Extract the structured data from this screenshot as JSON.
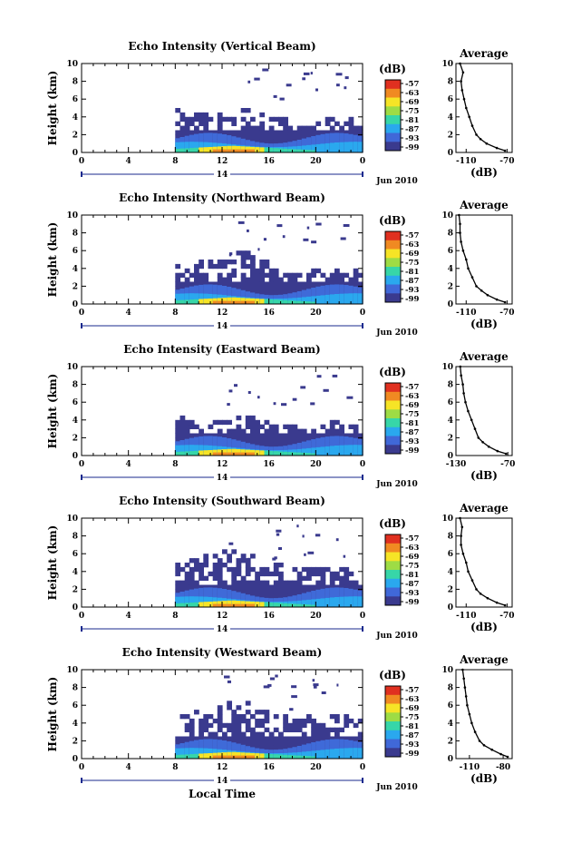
{
  "figure": {
    "xlabel": "Local Time",
    "date_label": "Jun 2010",
    "colorbar_unit": "(dB)",
    "colorbar_ticks": [
      "-57",
      "-63",
      "-69",
      "-75",
      "-81",
      "-87",
      "-93",
      "-99"
    ],
    "colorbar_colors": [
      "#e03020",
      "#f08a22",
      "#f6e426",
      "#9edc45",
      "#37d6a8",
      "#2aa8ee",
      "#4068d8",
      "#3a3a8e"
    ],
    "avg_title": "Average",
    "avg_xlabel": "(dB)"
  },
  "chart_data": [
    {
      "type": "heatmap",
      "title": "Echo Intensity (Vertical Beam)",
      "ylabel": "Height (km)",
      "x_ticks": [
        "0",
        "4",
        "8",
        "12",
        "16",
        "20",
        "0"
      ],
      "x_range": [
        0,
        24
      ],
      "day_label": "14",
      "y_ticks": [
        "0",
        "2",
        "4",
        "6",
        "8",
        "10"
      ],
      "ylim": [
        0,
        10
      ],
      "data_start_hour": 8,
      "echo_top_km": [
        4.6,
        4.4,
        4.3,
        4.2,
        4.4,
        5.1,
        4.6,
        4.3,
        4.0,
        3.8,
        3.6,
        3.4,
        3.4,
        3.5,
        3.7,
        3.6,
        3.5
      ],
      "average": {
        "title": "Average",
        "xlabel": "(dB)",
        "x_ticks": [
          "-110",
          "-70"
        ],
        "xlim": [
          -120,
          -65
        ],
        "profile": [
          [
            0.2,
            -72
          ],
          [
            0.5,
            -80
          ],
          [
            1,
            -90
          ],
          [
            1.5,
            -96
          ],
          [
            2,
            -100
          ],
          [
            3,
            -104
          ],
          [
            4,
            -107
          ],
          [
            5,
            -110
          ],
          [
            6,
            -112
          ],
          [
            7,
            -114
          ],
          [
            8,
            -115
          ],
          [
            9,
            -113
          ],
          [
            10,
            -116
          ]
        ]
      }
    },
    {
      "type": "heatmap",
      "title": "Echo Intensity (Northward Beam)",
      "ylabel": "Height (km)",
      "x_ticks": [
        "0",
        "4",
        "8",
        "12",
        "16",
        "20",
        "0"
      ],
      "x_range": [
        0,
        24
      ],
      "day_label": "14",
      "y_ticks": [
        "0",
        "2",
        "4",
        "6",
        "8",
        "10"
      ],
      "ylim": [
        0,
        10
      ],
      "data_start_hour": 8,
      "echo_top_km": [
        4.2,
        4.3,
        4.5,
        4.6,
        5.2,
        5.9,
        6.0,
        5.4,
        4.6,
        4.0,
        3.7,
        3.6,
        3.6,
        3.5,
        3.7,
        3.6,
        3.6
      ],
      "average": {
        "title": "Average",
        "xlabel": "(dB)",
        "x_ticks": [
          "-110",
          "-70"
        ],
        "xlim": [
          -120,
          -65
        ],
        "profile": [
          [
            0.2,
            -72
          ],
          [
            0.5,
            -80
          ],
          [
            1,
            -89
          ],
          [
            1.5,
            -95
          ],
          [
            2,
            -100
          ],
          [
            3,
            -104
          ],
          [
            4,
            -108
          ],
          [
            5,
            -110
          ],
          [
            6,
            -113
          ],
          [
            7,
            -115
          ],
          [
            8,
            -116
          ],
          [
            9,
            -116
          ],
          [
            10,
            -117
          ]
        ]
      }
    },
    {
      "type": "heatmap",
      "title": "Echo Intensity (Eastward Beam)",
      "ylabel": "Height (km)",
      "x_ticks": [
        "0",
        "4",
        "8",
        "12",
        "16",
        "20",
        "0"
      ],
      "x_range": [
        0,
        24
      ],
      "day_label": "14",
      "y_ticks": [
        "0",
        "2",
        "4",
        "6",
        "8",
        "10"
      ],
      "ylim": [
        0,
        10
      ],
      "data_start_hour": 8,
      "echo_top_km": [
        4.2,
        4.0,
        3.9,
        3.8,
        3.9,
        4.3,
        4.2,
        3.9,
        3.6,
        3.5,
        3.4,
        3.3,
        3.4,
        3.5,
        3.6,
        3.5,
        3.4
      ],
      "average": {
        "title": "Average",
        "xlabel": "(dB)",
        "x_ticks": [
          "-130",
          "-70"
        ],
        "xlim": [
          -130,
          -65
        ],
        "profile": [
          [
            0.2,
            -72
          ],
          [
            0.5,
            -82
          ],
          [
            1,
            -92
          ],
          [
            1.5,
            -99
          ],
          [
            2,
            -104
          ],
          [
            3,
            -108
          ],
          [
            4,
            -112
          ],
          [
            5,
            -116
          ],
          [
            6,
            -119
          ],
          [
            7,
            -121
          ],
          [
            8,
            -122
          ],
          [
            9,
            -124
          ],
          [
            10,
            -125
          ]
        ]
      }
    },
    {
      "type": "heatmap",
      "title": "Echo Intensity (Southward Beam)",
      "ylabel": "Height (km)",
      "x_ticks": [
        "0",
        "4",
        "8",
        "12",
        "16",
        "20",
        "0"
      ],
      "x_range": [
        0,
        24
      ],
      "day_label": "14",
      "y_ticks": [
        "0",
        "2",
        "4",
        "6",
        "8",
        "10"
      ],
      "ylim": [
        0,
        10
      ],
      "data_start_hour": 8,
      "echo_top_km": [
        4.8,
        5.0,
        5.3,
        5.8,
        6.0,
        6.2,
        5.8,
        5.3,
        4.9,
        4.6,
        4.4,
        4.3,
        4.2,
        4.1,
        4.3,
        4.2,
        4.0
      ],
      "average": {
        "title": "Average",
        "xlabel": "(dB)",
        "x_ticks": [
          "-110",
          "-70"
        ],
        "xlim": [
          -120,
          -65
        ],
        "profile": [
          [
            0.2,
            -72
          ],
          [
            0.5,
            -80
          ],
          [
            1,
            -89
          ],
          [
            1.5,
            -96
          ],
          [
            2,
            -100
          ],
          [
            3,
            -104
          ],
          [
            4,
            -108
          ],
          [
            5,
            -110
          ],
          [
            6,
            -113
          ],
          [
            7,
            -115
          ],
          [
            8,
            -115
          ],
          [
            9,
            -114
          ],
          [
            10,
            -116
          ]
        ]
      }
    },
    {
      "type": "heatmap",
      "title": "Echo Intensity (Westward Beam)",
      "ylabel": "Height (km)",
      "x_ticks": [
        "0",
        "4",
        "8",
        "12",
        "16",
        "20",
        "0"
      ],
      "x_range": [
        0,
        24
      ],
      "day_label": "14",
      "y_ticks": [
        "0",
        "2",
        "4",
        "6",
        "8",
        "10"
      ],
      "ylim": [
        0,
        10
      ],
      "data_start_hour": 8,
      "echo_top_km": [
        4.4,
        4.8,
        5.2,
        5.6,
        6.0,
        6.4,
        6.2,
        5.6,
        5.0,
        4.7,
        4.5,
        4.6,
        4.5,
        4.4,
        4.6,
        4.5,
        4.3
      ],
      "average": {
        "title": "Average",
        "xlabel": "(dB)",
        "x_ticks": [
          "-110",
          "-80"
        ],
        "xlim": [
          -122,
          -72
        ],
        "profile": [
          [
            0.2,
            -76
          ],
          [
            0.5,
            -82
          ],
          [
            1,
            -90
          ],
          [
            1.5,
            -97
          ],
          [
            2,
            -101
          ],
          [
            3,
            -105
          ],
          [
            4,
            -108
          ],
          [
            5,
            -110
          ],
          [
            6,
            -112
          ],
          [
            7,
            -113
          ],
          [
            8,
            -114
          ],
          [
            9,
            -115
          ],
          [
            10,
            -116
          ]
        ]
      }
    }
  ]
}
